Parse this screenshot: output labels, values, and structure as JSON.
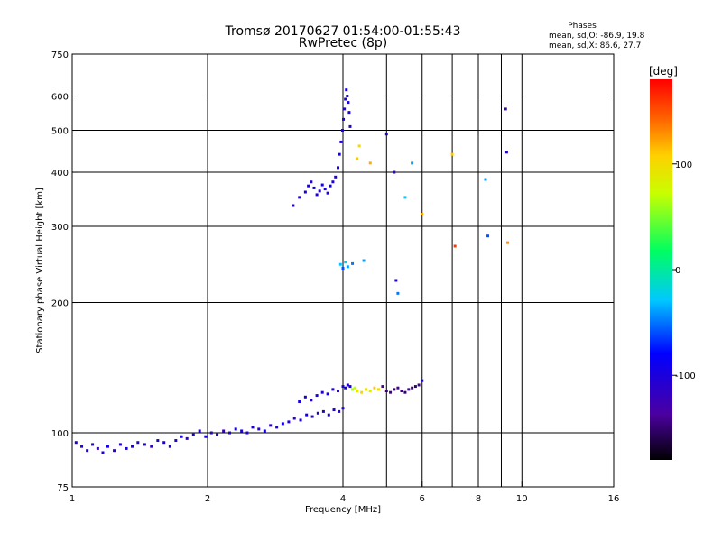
{
  "chart_data": {
    "type": "scatter",
    "title": "Tromsø 20170627 01:54:00-01:55:43",
    "subtitle": "RwPretec (8p)",
    "xlabel": "Frequency [MHz]",
    "ylabel": "Stationary phase Virtual Height [km]",
    "x_scale": "log",
    "y_scale": "log",
    "xlim": [
      1,
      16
    ],
    "ylim": [
      75,
      750
    ],
    "x_ticks": [
      1,
      2,
      4,
      6,
      8,
      10,
      16
    ],
    "y_ticks": [
      75,
      100,
      200,
      300,
      400,
      500,
      600,
      750
    ],
    "x_ticklabels": [
      "1",
      "2",
      "4",
      "6",
      "8",
      "10",
      "16"
    ],
    "y_ticklabels": [
      "75",
      "100",
      "200",
      "300",
      "400",
      "500",
      "600",
      "750"
    ],
    "grid": true,
    "phases": {
      "title": "Phases",
      "line_o": "mean, sd,O: -86.9, 19.8",
      "line_x": "mean, sd,X:  86.6, 27.7"
    },
    "colorbar": {
      "label": "[deg]",
      "range": [
        -180,
        180
      ],
      "ticks": [
        100,
        0,
        -100
      ],
      "ticklabels": [
        "100",
        "0",
        "-100"
      ]
    },
    "series": [
      {
        "x": [
          1.02,
          1.05,
          1.08,
          1.11,
          1.14,
          1.17,
          1.2,
          1.24,
          1.28,
          1.32,
          1.36,
          1.4,
          1.45,
          1.5,
          1.55,
          1.6,
          1.65,
          1.7,
          1.75,
          1.8,
          1.86,
          1.92,
          1.98,
          2.04,
          2.1,
          2.17,
          2.24,
          2.31,
          2.38,
          2.45,
          2.52,
          2.6,
          2.68,
          2.76,
          2.85,
          2.94,
          3.03,
          3.12,
          3.22,
          3.32,
          3.42,
          3.52,
          3.62,
          3.72,
          3.82,
          3.92,
          4.0
        ],
        "y": [
          95,
          93,
          91,
          94,
          92,
          90,
          93,
          91,
          94,
          92,
          93,
          95,
          94,
          93,
          96,
          95,
          93,
          96,
          98,
          97,
          99,
          101,
          98,
          100,
          99,
          101,
          100,
          102,
          101,
          100,
          103,
          102,
          101,
          104,
          103,
          105,
          106,
          108,
          107,
          110,
          109,
          111,
          112,
          110,
          113,
          112,
          114
        ],
        "phase_deg": [
          -100,
          -110,
          -95,
          -105,
          -120,
          -100,
          -90,
          -115,
          -105,
          -100,
          -95,
          -110,
          -100,
          -120,
          -105,
          -95,
          -100,
          -110,
          -90,
          -115,
          -100,
          -105,
          -95,
          -110,
          -100,
          -120,
          -105,
          -95,
          -100,
          -110,
          -100,
          -105,
          -95,
          -110,
          -100,
          -90,
          -105,
          -115,
          -100,
          -95,
          -110,
          -100,
          -105,
          -95,
          -100,
          -110,
          -100
        ]
      },
      {
        "x": [
          3.2,
          3.3,
          3.4,
          3.5,
          3.6,
          3.7,
          3.8,
          3.9,
          4.0,
          4.05,
          4.1,
          4.15,
          4.2,
          4.25,
          4.3,
          4.4,
          4.5,
          4.6,
          4.7,
          4.8,
          4.9,
          5.0,
          5.1,
          5.2,
          5.3,
          5.4,
          5.5,
          5.6,
          5.7,
          5.8,
          5.9,
          6.0
        ],
        "y": [
          118,
          121,
          119,
          122,
          124,
          123,
          126,
          125,
          128,
          127,
          129,
          128,
          126,
          127,
          125,
          124,
          126,
          125,
          127,
          126,
          128,
          125,
          124,
          126,
          127,
          125,
          124,
          126,
          127,
          128,
          129,
          132
        ],
        "phase_deg": [
          -100,
          -95,
          -110,
          -100,
          -105,
          -95,
          -100,
          -110,
          -100,
          -90,
          -105,
          -100,
          60,
          70,
          90,
          100,
          95,
          85,
          110,
          100,
          -140,
          -150,
          -145,
          -150,
          -140,
          -145,
          -150,
          -140,
          -145,
          -150,
          -140,
          -100
        ]
      },
      {
        "x": [
          3.1,
          3.2,
          3.3,
          3.35,
          3.4,
          3.45,
          3.5,
          3.55,
          3.6,
          3.65,
          3.7,
          3.75,
          3.8,
          3.85,
          3.9,
          3.93,
          3.96,
          3.99,
          4.01,
          4.03,
          4.05,
          4.07,
          4.09,
          4.11,
          4.13,
          4.15
        ],
        "y": [
          335,
          350,
          360,
          372,
          380,
          368,
          355,
          362,
          374,
          366,
          358,
          372,
          380,
          390,
          410,
          440,
          470,
          500,
          530,
          560,
          590,
          620,
          600,
          580,
          550,
          510
        ],
        "phase_deg": [
          -100,
          -110,
          -95,
          -100,
          -105,
          -90,
          -100,
          -110,
          -95,
          -100,
          -105,
          -95,
          -100,
          -110,
          -100,
          -95,
          -105,
          -100,
          -90,
          -110,
          -100,
          -95,
          -105,
          -100,
          -95,
          -110
        ]
      },
      {
        "x": [
          3.95,
          4.0,
          4.05,
          4.1,
          4.2,
          4.3,
          4.35,
          4.45,
          4.6,
          5.0,
          5.2,
          5.25,
          5.3,
          5.5,
          5.7,
          6.0,
          7.0,
          7.1,
          8.3,
          8.4,
          9.2,
          9.25,
          9.3
        ],
        "y": [
          245,
          240,
          248,
          242,
          246,
          430,
          460,
          250,
          420,
          490,
          400,
          225,
          210,
          350,
          420,
          320,
          440,
          270,
          385,
          285,
          560,
          445,
          275
        ],
        "phase_deg": [
          -30,
          -60,
          -20,
          -40,
          -50,
          110,
          100,
          -40,
          120,
          -110,
          -120,
          -100,
          -50,
          -30,
          -40,
          120,
          110,
          160,
          -40,
          -60,
          -130,
          -110,
          130
        ]
      }
    ]
  }
}
